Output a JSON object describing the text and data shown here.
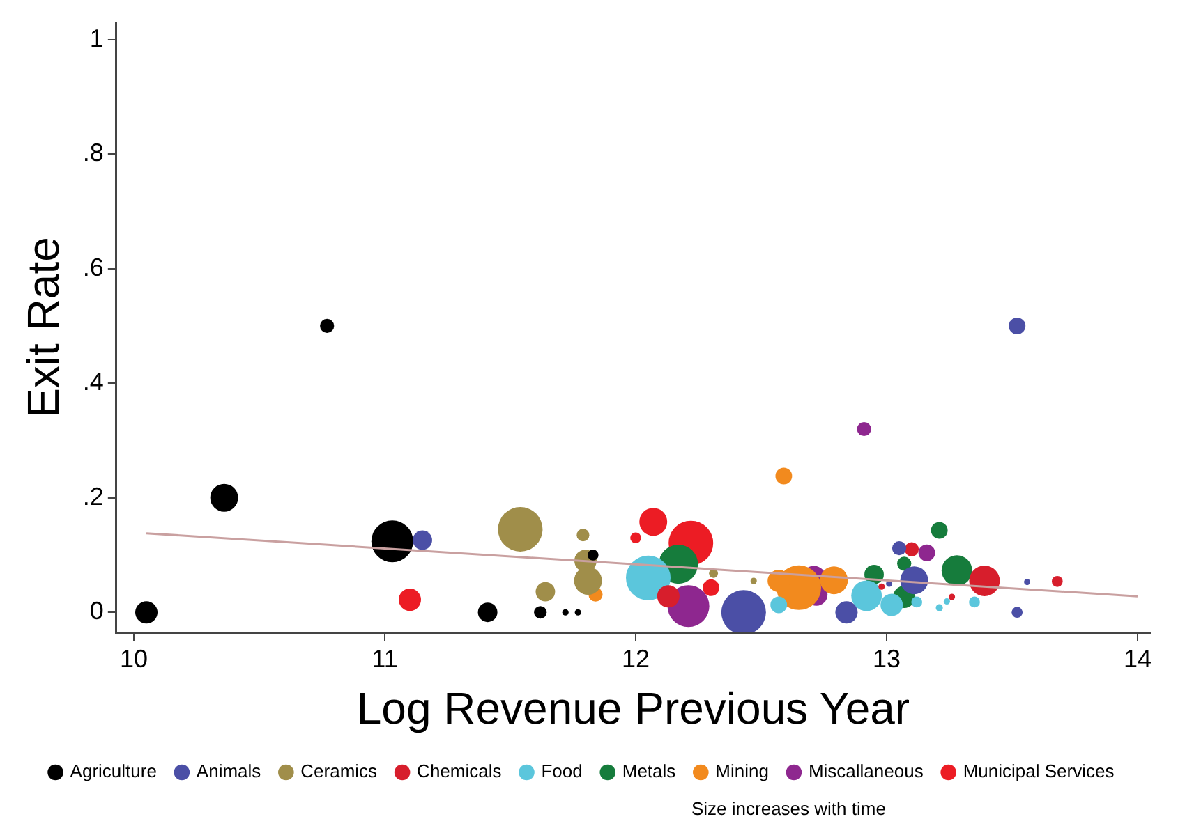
{
  "chart_data": {
    "type": "bubble",
    "xlabel": "Log Revenue Previous Year",
    "ylabel": "Exit Rate",
    "xlim": [
      9.93,
      14.05
    ],
    "xticks": [
      10,
      11,
      12,
      13,
      14
    ],
    "ylim": [
      -0.035,
      1.03
    ],
    "yticks": [
      0,
      {
        "value": 0.2,
        "label": ".2"
      },
      {
        "value": 0.4,
        "label": ".4"
      },
      {
        "value": 0.6,
        "label": ".6"
      },
      {
        "value": 0.8,
        "label": ".8"
      },
      1
    ],
    "grid": false,
    "legend": "bottom",
    "marker": "circle",
    "annotations": [
      "Size increases with time"
    ],
    "series": [
      {
        "name": "Agriculture",
        "color": "#000000",
        "x": [
          10.05,
          10.36,
          10.77,
          11.03,
          11.41,
          11.62,
          11.72,
          11.77,
          11.83
        ],
        "values": [
          0,
          0.2,
          0.5,
          0.124,
          0,
          0,
          0,
          0,
          0.1
        ],
        "sizes": [
          0.25,
          0.39,
          0.1,
          0.88,
          0.19,
          0.08,
          0.02,
          0.02,
          0.06
        ]
      },
      {
        "name": "Animals",
        "color": "#4b4fa6",
        "x": [
          11.15,
          13.52,
          13.52,
          12.43,
          12.84,
          13.11,
          13.05,
          13.56,
          13.01
        ],
        "values": [
          0.126,
          0.5,
          0,
          0,
          0,
          0.056,
          0.112,
          0.053,
          0.05
        ],
        "sizes": [
          0.19,
          0.14,
          0.06,
          1,
          0.25,
          0.39,
          0.1,
          0.02,
          0.02
        ]
      },
      {
        "name": "Ceramics",
        "color": "#a08e4a",
        "x": [
          11.54,
          11.79,
          11.8,
          11.81,
          11.64,
          12.31,
          12.47
        ],
        "values": [
          0.145,
          0.135,
          0.09,
          0.055,
          0.036,
          0.068,
          0.055
        ],
        "sizes": [
          1,
          0.08,
          0.25,
          0.39,
          0.19,
          0.04,
          0.02
        ]
      },
      {
        "name": "Chemicals",
        "color": "#d71e2c",
        "x": [
          13.1,
          13.39,
          13.68,
          13.26,
          12.98,
          12.13
        ],
        "values": [
          0.11,
          0.055,
          0.054,
          0.027,
          0.045,
          0.028
        ],
        "sizes": [
          0.1,
          0.47,
          0.06,
          0.02,
          0.02,
          0.25
        ]
      },
      {
        "name": "Food",
        "color": "#5bc6dc",
        "x": [
          12.05,
          12.92,
          13.02,
          12.57,
          13.12,
          13.35,
          13.21,
          13.24
        ],
        "values": [
          0.06,
          0.029,
          0.013,
          0.013,
          0.018,
          0.018,
          0.008,
          0.019
        ],
        "sizes": [
          1,
          0.47,
          0.25,
          0.14,
          0.06,
          0.06,
          0.025,
          0.02
        ]
      },
      {
        "name": "Metals",
        "color": "#167c3c",
        "x": [
          12.17,
          13.21,
          13.28,
          12.95,
          13.07,
          13.07
        ],
        "values": [
          0.084,
          0.143,
          0.073,
          0.066,
          0.085,
          0.027
        ],
        "sizes": [
          0.77,
          0.14,
          0.47,
          0.19,
          0.1,
          0.25
        ]
      },
      {
        "name": "Mining",
        "color": "#f28a1e",
        "x": [
          12.59,
          12.65,
          12.79,
          11.84,
          12.57
        ],
        "values": [
          0.238,
          0.043,
          0.056,
          0.031,
          0.055
        ],
        "sizes": [
          0.14,
          1,
          0.39,
          0.1,
          0.25
        ]
      },
      {
        "name": "Miscallaneous",
        "color": "#8e278f",
        "x": [
          12.91,
          12.21,
          12.72,
          12.71,
          13.16
        ],
        "values": [
          0.32,
          0.011,
          0.031,
          0.059,
          0.104
        ],
        "sizes": [
          0.1,
          0.88,
          0.25,
          0.32,
          0.14
        ]
      },
      {
        "name": "Municipal Services",
        "color": "#ec1c24",
        "x": [
          11.1,
          12.07,
          12.22,
          12.3,
          12.0
        ],
        "values": [
          0.022,
          0.158,
          0.121,
          0.043,
          0.13
        ],
        "sizes": [
          0.25,
          0.39,
          1,
          0.14,
          0.06
        ]
      },
      {
        "type": "line",
        "marker": "none",
        "color": "#c9a0a0",
        "x": [
          10.05,
          14
        ],
        "values": [
          0.138,
          0.028
        ]
      }
    ]
  }
}
